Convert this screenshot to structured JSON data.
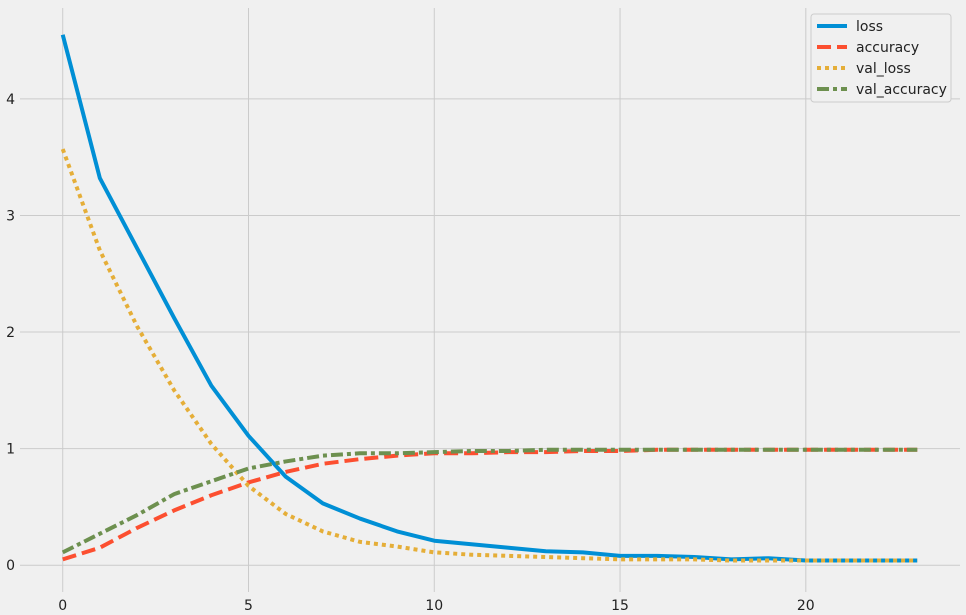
{
  "chart_data": {
    "type": "line",
    "title": "",
    "xlabel": "",
    "ylabel": "",
    "xlim": [
      -1.15,
      24.15
    ],
    "ylim": [
      -0.23,
      4.78
    ],
    "x_ticks": [
      0,
      5,
      10,
      15,
      20
    ],
    "y_ticks": [
      0,
      1,
      2,
      3,
      4
    ],
    "grid": true,
    "legend_position": "top-right",
    "x": [
      0,
      1,
      2,
      3,
      4,
      5,
      6,
      7,
      8,
      9,
      10,
      11,
      12,
      13,
      14,
      15,
      16,
      17,
      18,
      19,
      20,
      21,
      22,
      23
    ],
    "series": [
      {
        "name": "loss",
        "color": "#008fd5",
        "dash": "solid",
        "values": [
          4.55,
          3.32,
          2.72,
          2.12,
          1.54,
          1.11,
          0.76,
          0.53,
          0.4,
          0.29,
          0.21,
          0.18,
          0.15,
          0.12,
          0.11,
          0.08,
          0.08,
          0.07,
          0.05,
          0.06,
          0.04,
          0.04,
          0.04,
          0.04
        ]
      },
      {
        "name": "accuracy",
        "color": "#fc4f30",
        "dash": "dashed",
        "values": [
          0.05,
          0.15,
          0.32,
          0.47,
          0.6,
          0.71,
          0.8,
          0.87,
          0.91,
          0.94,
          0.96,
          0.96,
          0.97,
          0.97,
          0.98,
          0.98,
          0.99,
          0.99,
          0.99,
          0.99,
          0.99,
          0.99,
          0.99,
          0.99
        ]
      },
      {
        "name": "val_loss",
        "color": "#e5ae38",
        "dash": "dotted",
        "values": [
          3.57,
          2.7,
          2.05,
          1.5,
          1.04,
          0.68,
          0.44,
          0.29,
          0.2,
          0.16,
          0.11,
          0.09,
          0.08,
          0.07,
          0.06,
          0.05,
          0.05,
          0.05,
          0.04,
          0.04,
          0.04,
          0.04,
          0.04,
          0.04
        ]
      },
      {
        "name": "val_accuracy",
        "color": "#6d904f",
        "dash": "dashdot",
        "values": [
          0.11,
          0.27,
          0.43,
          0.61,
          0.72,
          0.83,
          0.89,
          0.94,
          0.96,
          0.96,
          0.97,
          0.98,
          0.98,
          0.99,
          0.99,
          0.99,
          0.99,
          0.99,
          0.99,
          0.99,
          0.99,
          0.99,
          0.99,
          0.99
        ]
      }
    ]
  }
}
